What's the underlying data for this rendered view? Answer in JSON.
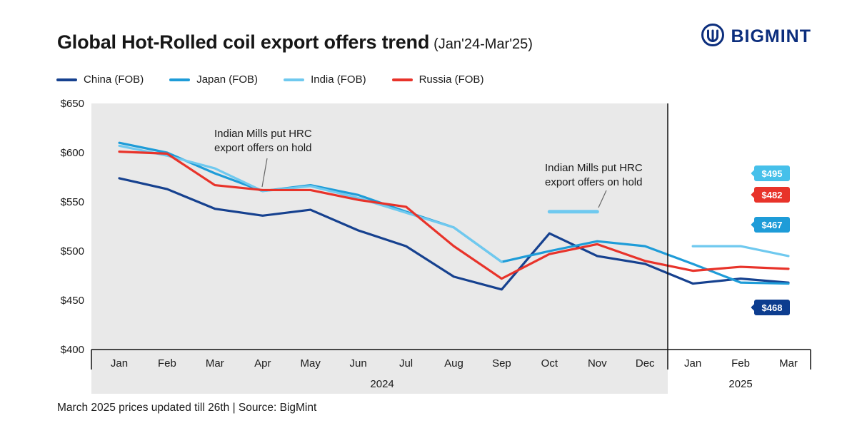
{
  "header": {
    "title": "Global Hot-Rolled coil export offers trend",
    "subtitle": "(Jan'24-Mar'25)",
    "brand": "BIGMINT",
    "brand_color": "#0c2e7d"
  },
  "legend": [
    {
      "label": "China (FOB)",
      "color": "#16418f"
    },
    {
      "label": "Japan (FOB)",
      "color": "#1e9cd8"
    },
    {
      "label": "India (FOB)",
      "color": "#6fc9ef"
    },
    {
      "label": "Russia (FOB)",
      "color": "#e8332a"
    }
  ],
  "chart_data": {
    "type": "line",
    "title": "Global Hot-Rolled coil export offers trend (Jan'24-Mar'25)",
    "x_labels": [
      "Jan",
      "Feb",
      "Mar",
      "Apr",
      "May",
      "Jun",
      "Jul",
      "Aug",
      "Sep",
      "Oct",
      "Nov",
      "Dec",
      "Jan",
      "Feb",
      "Mar"
    ],
    "year_groups": [
      {
        "label": "2024",
        "span": [
          0,
          11
        ]
      },
      {
        "label": "2025",
        "span": [
          12,
          14
        ]
      }
    ],
    "ylim": [
      400,
      650
    ],
    "yticks": [
      650,
      600,
      550,
      500,
      450,
      400
    ],
    "y_prefix": "$",
    "plot_bg_2024": "#e9e9e9",
    "series": [
      {
        "name": "China (FOB)",
        "color": "#16418f",
        "values": [
          574,
          563,
          543,
          536,
          542,
          521,
          505,
          474,
          461,
          518,
          495,
          487,
          467,
          472,
          468
        ]
      },
      {
        "name": "Japan (FOB)",
        "color": "#1e9cd8",
        "values": [
          610,
          600,
          579,
          561,
          567,
          557,
          540,
          524,
          489,
          500,
          510,
          505,
          487,
          468,
          467
        ]
      },
      {
        "name": "India (FOB)",
        "color": "#6fc9ef",
        "values": [
          607,
          597,
          584,
          561,
          566,
          554,
          539,
          524,
          489,
          null,
          null,
          null,
          505,
          505,
          495
        ]
      },
      {
        "name": "Russia (FOB)",
        "color": "#e8332a",
        "values": [
          601,
          599,
          567,
          562,
          562,
          552,
          545,
          505,
          472,
          497,
          507,
          490,
          480,
          484,
          482
        ]
      }
    ],
    "hold_segment": {
      "series": "India (FOB)",
      "from_index": 9,
      "to_index": 10,
      "value": 540,
      "color": "#6fc9ef"
    },
    "annotations": [
      {
        "text": "Indian Mills put HRC\nexport offers on hold"
      },
      {
        "text": "Indian Mills put HRC\nexport offers on hold"
      }
    ],
    "end_labels": [
      {
        "text": "$495",
        "series": "India (FOB)",
        "color": "#46c0ea"
      },
      {
        "text": "$482",
        "series": "Russia (FOB)",
        "color": "#e8332a"
      },
      {
        "text": "$467",
        "series": "Japan (FOB)",
        "color": "#1e9cd8"
      },
      {
        "text": "$468",
        "series": "China (FOB)",
        "color": "#0d3d8f"
      }
    ]
  },
  "footer": {
    "note": "March 2025 prices updated till 26th | Source: BigMint"
  }
}
